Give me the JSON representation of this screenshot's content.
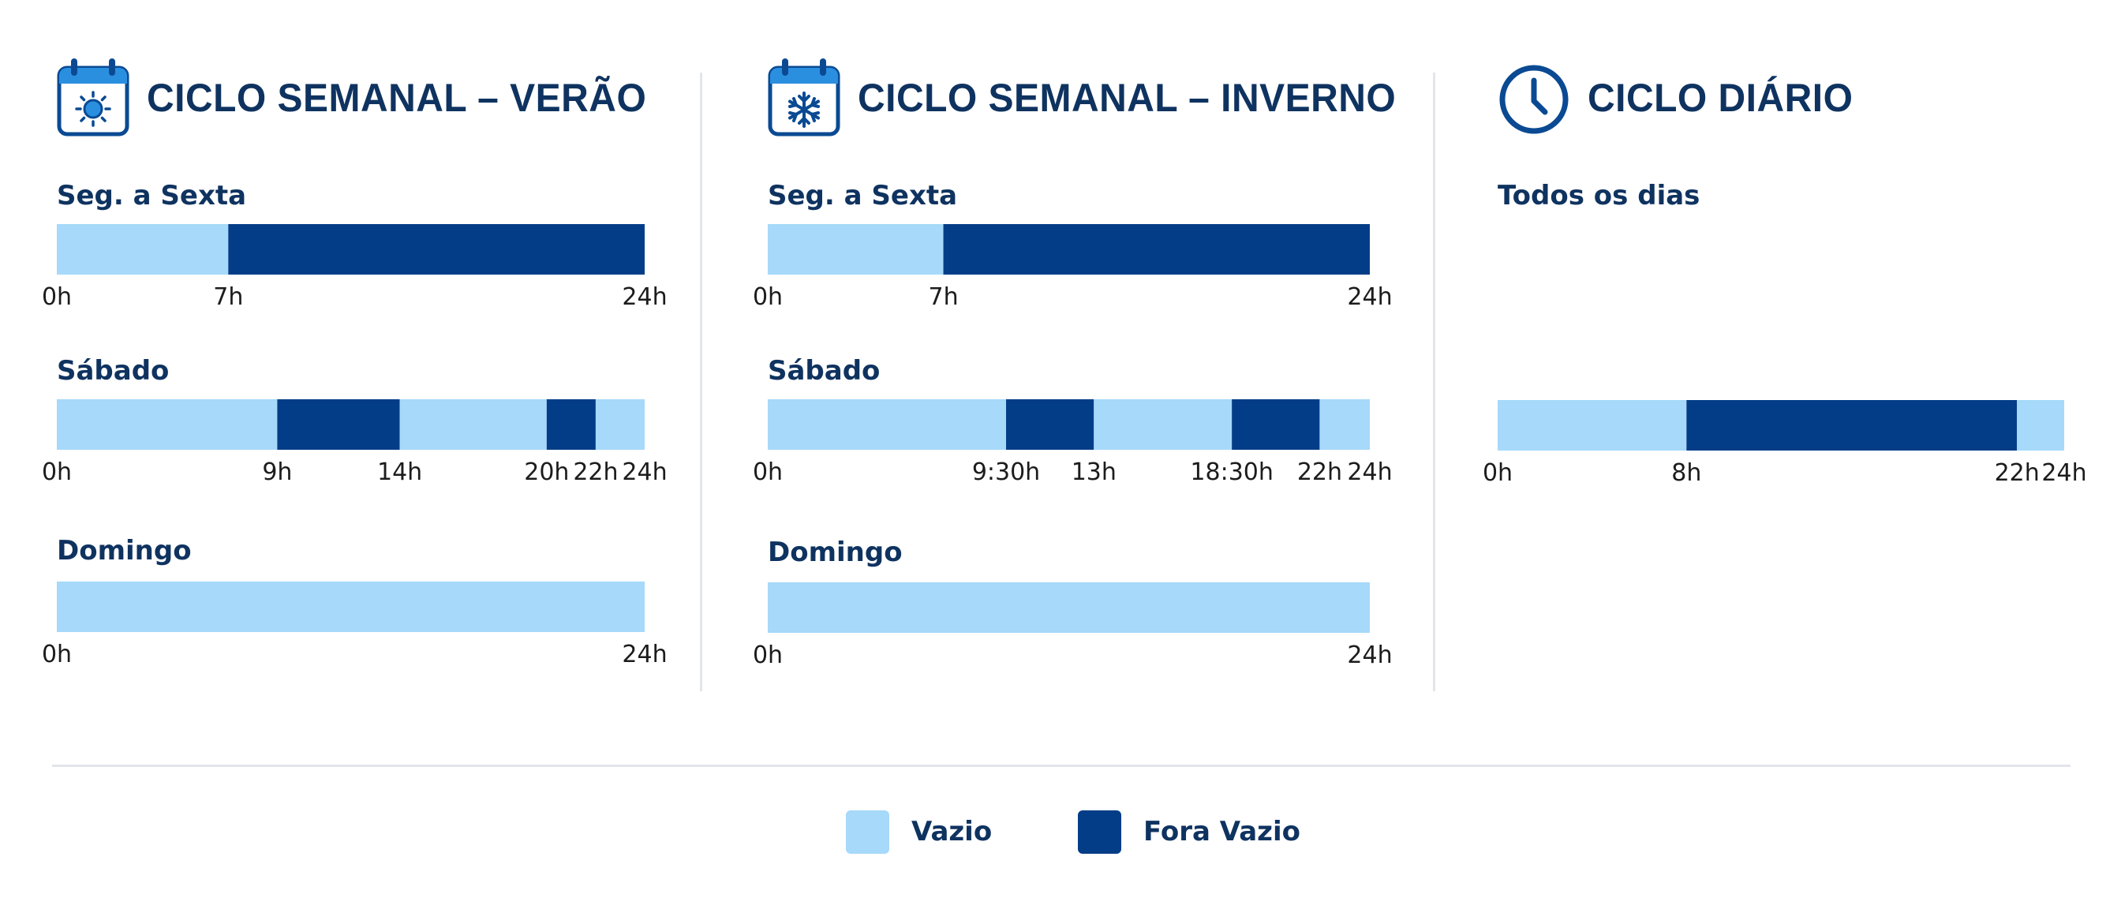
{
  "colors": {
    "vazio": "#a6d9fa",
    "fora_vazio": "#043d87",
    "text": "#0f3360"
  },
  "legend": [
    {
      "label": "Vazio",
      "color": "#a6d9fa"
    },
    {
      "label": "Fora Vazio",
      "color": "#043d87"
    }
  ],
  "chart_data": [
    {
      "type": "bar",
      "title": "CICLO SEMANAL – VERÃO",
      "icon": "calendar-sun-icon",
      "axis_unit": "h",
      "xlim": [
        0,
        24
      ],
      "rows": [
        {
          "label": "Seg. a Sexta",
          "segments": [
            {
              "start": 0,
              "end": 7,
              "period": "Vazio"
            },
            {
              "start": 7,
              "end": 24,
              "period": "Fora Vazio"
            }
          ],
          "ticks": [
            {
              "value": 0,
              "label": "0h"
            },
            {
              "value": 7,
              "label": "7h"
            },
            {
              "value": 24,
              "label": "24h"
            }
          ]
        },
        {
          "label": "Sábado",
          "segments": [
            {
              "start": 0,
              "end": 9,
              "period": "Vazio"
            },
            {
              "start": 9,
              "end": 14,
              "period": "Fora Vazio"
            },
            {
              "start": 14,
              "end": 20,
              "period": "Vazio"
            },
            {
              "start": 20,
              "end": 22,
              "period": "Fora Vazio"
            },
            {
              "start": 22,
              "end": 24,
              "period": "Vazio"
            }
          ],
          "ticks": [
            {
              "value": 0,
              "label": "0h"
            },
            {
              "value": 9,
              "label": "9h"
            },
            {
              "value": 14,
              "label": "14h"
            },
            {
              "value": 20,
              "label": "20h"
            },
            {
              "value": 22,
              "label": "22h"
            },
            {
              "value": 24,
              "label": "24h"
            }
          ]
        },
        {
          "label": "Domingo",
          "segments": [
            {
              "start": 0,
              "end": 24,
              "period": "Vazio"
            }
          ],
          "ticks": [
            {
              "value": 0,
              "label": "0h"
            },
            {
              "value": 24,
              "label": "24h"
            }
          ]
        }
      ]
    },
    {
      "type": "bar",
      "title": "CICLO SEMANAL – INVERNO",
      "icon": "calendar-snowflake-icon",
      "axis_unit": "h",
      "xlim": [
        0,
        24
      ],
      "rows": [
        {
          "label": "Seg. a Sexta",
          "segments": [
            {
              "start": 0,
              "end": 7,
              "period": "Vazio"
            },
            {
              "start": 7,
              "end": 24,
              "period": "Fora Vazio"
            }
          ],
          "ticks": [
            {
              "value": 0,
              "label": "0h"
            },
            {
              "value": 7,
              "label": "7h"
            },
            {
              "value": 24,
              "label": "24h"
            }
          ]
        },
        {
          "label": "Sábado",
          "segments": [
            {
              "start": 0,
              "end": 9.5,
              "period": "Vazio"
            },
            {
              "start": 9.5,
              "end": 13,
              "period": "Fora Vazio"
            },
            {
              "start": 13,
              "end": 18.5,
              "period": "Vazio"
            },
            {
              "start": 18.5,
              "end": 22,
              "period": "Fora Vazio"
            },
            {
              "start": 22,
              "end": 24,
              "period": "Vazio"
            }
          ],
          "ticks": [
            {
              "value": 0,
              "label": "0h"
            },
            {
              "value": 9.5,
              "label": "9:30h"
            },
            {
              "value": 13,
              "label": "13h"
            },
            {
              "value": 18.5,
              "label": "18:30h"
            },
            {
              "value": 22,
              "label": "22h"
            },
            {
              "value": 24,
              "label": "24h"
            }
          ]
        },
        {
          "label": "Domingo",
          "segments": [
            {
              "start": 0,
              "end": 24,
              "period": "Vazio"
            }
          ],
          "ticks": [
            {
              "value": 0,
              "label": "0h"
            },
            {
              "value": 24,
              "label": "24h"
            }
          ]
        }
      ]
    },
    {
      "type": "bar",
      "title": "CICLO DIÁRIO",
      "icon": "clock-icon",
      "axis_unit": "h",
      "xlim": [
        0,
        24
      ],
      "rows": [
        {
          "label": "Todos os dias",
          "segments": [
            {
              "start": 0,
              "end": 8,
              "period": "Vazio"
            },
            {
              "start": 8,
              "end": 22,
              "period": "Fora Vazio"
            },
            {
              "start": 22,
              "end": 24,
              "period": "Vazio"
            }
          ],
          "ticks": [
            {
              "value": 0,
              "label": "0h"
            },
            {
              "value": 8,
              "label": "8h"
            },
            {
              "value": 22,
              "label": "22h"
            },
            {
              "value": 24,
              "label": "24h"
            }
          ]
        }
      ]
    }
  ]
}
